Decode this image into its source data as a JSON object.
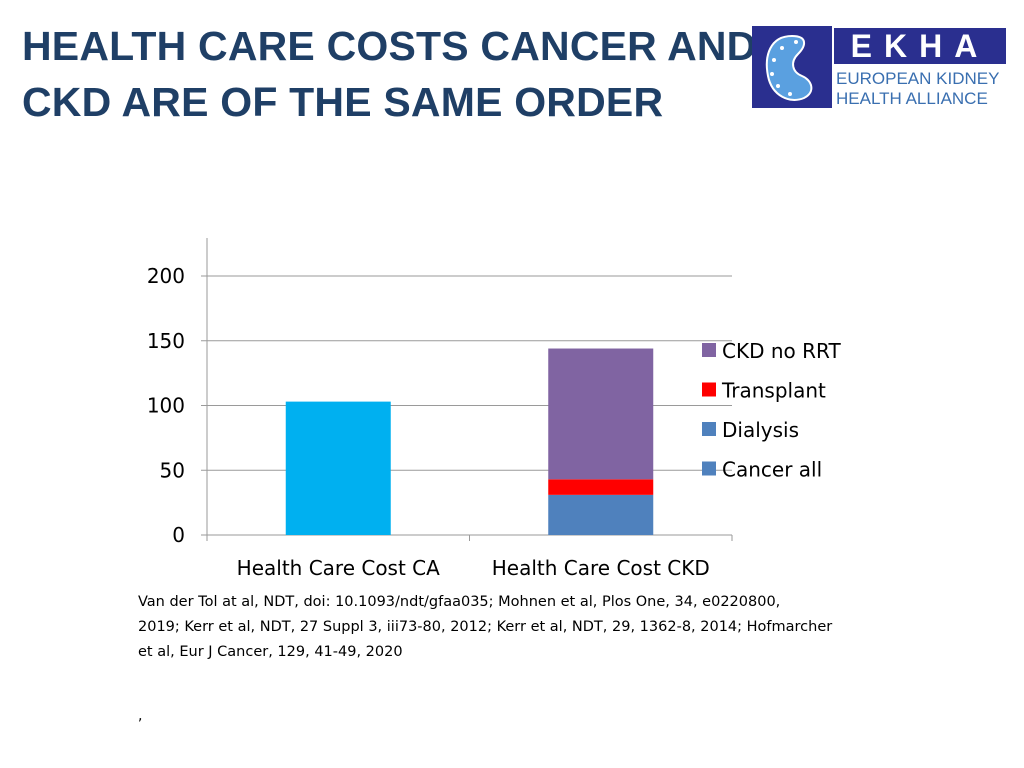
{
  "slide": {
    "title_line1": "HEALTH CARE COSTS CANCER AND",
    "title_line2": "CKD ARE OF THE SAME ORDER",
    "title_color": "#1f3f66",
    "source_lines": [
      "Van der Tol at al, NDT, doi: 10.1093/ndt/gfaa035;  Mohnen et al, Plos One, 34, e0220800,",
      "2019; Kerr et al, NDT, 27 Suppl 3, iii73-80, 2012; Kerr et al, NDT, 29, 1362-8, 2014; Hofmarcher",
      "et al, Eur J Cancer, 129, 41-49, 2020"
    ],
    "footer_mark": ","
  },
  "logo": {
    "letters": "EKHA",
    "line1": "EUROPEAN KIDNEY",
    "line2": "HEALTH ALLIANCE",
    "brand_color": "#2a2f8f",
    "text_color": "#3a6fb0"
  },
  "chart_data": {
    "type": "bar",
    "stacked": true,
    "categories": [
      "Health Care Cost CA",
      "Health Care Cost CKD"
    ],
    "series": [
      {
        "name": "Cancer all",
        "values": [
          0,
          0
        ],
        "color": "#4f81bd"
      },
      {
        "name": "Dialysis",
        "values": [
          0,
          31
        ],
        "color": "#4f81bd"
      },
      {
        "name": "Transplant",
        "values": [
          0,
          12
        ],
        "color": "#ff0000"
      },
      {
        "name": "CKD no RRT",
        "values": [
          0,
          101
        ],
        "color": "#8064a2"
      }
    ],
    "single_bar": {
      "category": "Health Care Cost CA",
      "value": 103,
      "color": "#00b0f0"
    },
    "legend_order": [
      "CKD no RRT",
      "Transplant",
      "Dialysis",
      "Cancer all"
    ],
    "ylim": [
      0,
      200
    ],
    "yticks": [
      0,
      50,
      100,
      150,
      200
    ],
    "grid": true,
    "legend_position": "right",
    "title": "",
    "xlabel": "",
    "ylabel": ""
  }
}
